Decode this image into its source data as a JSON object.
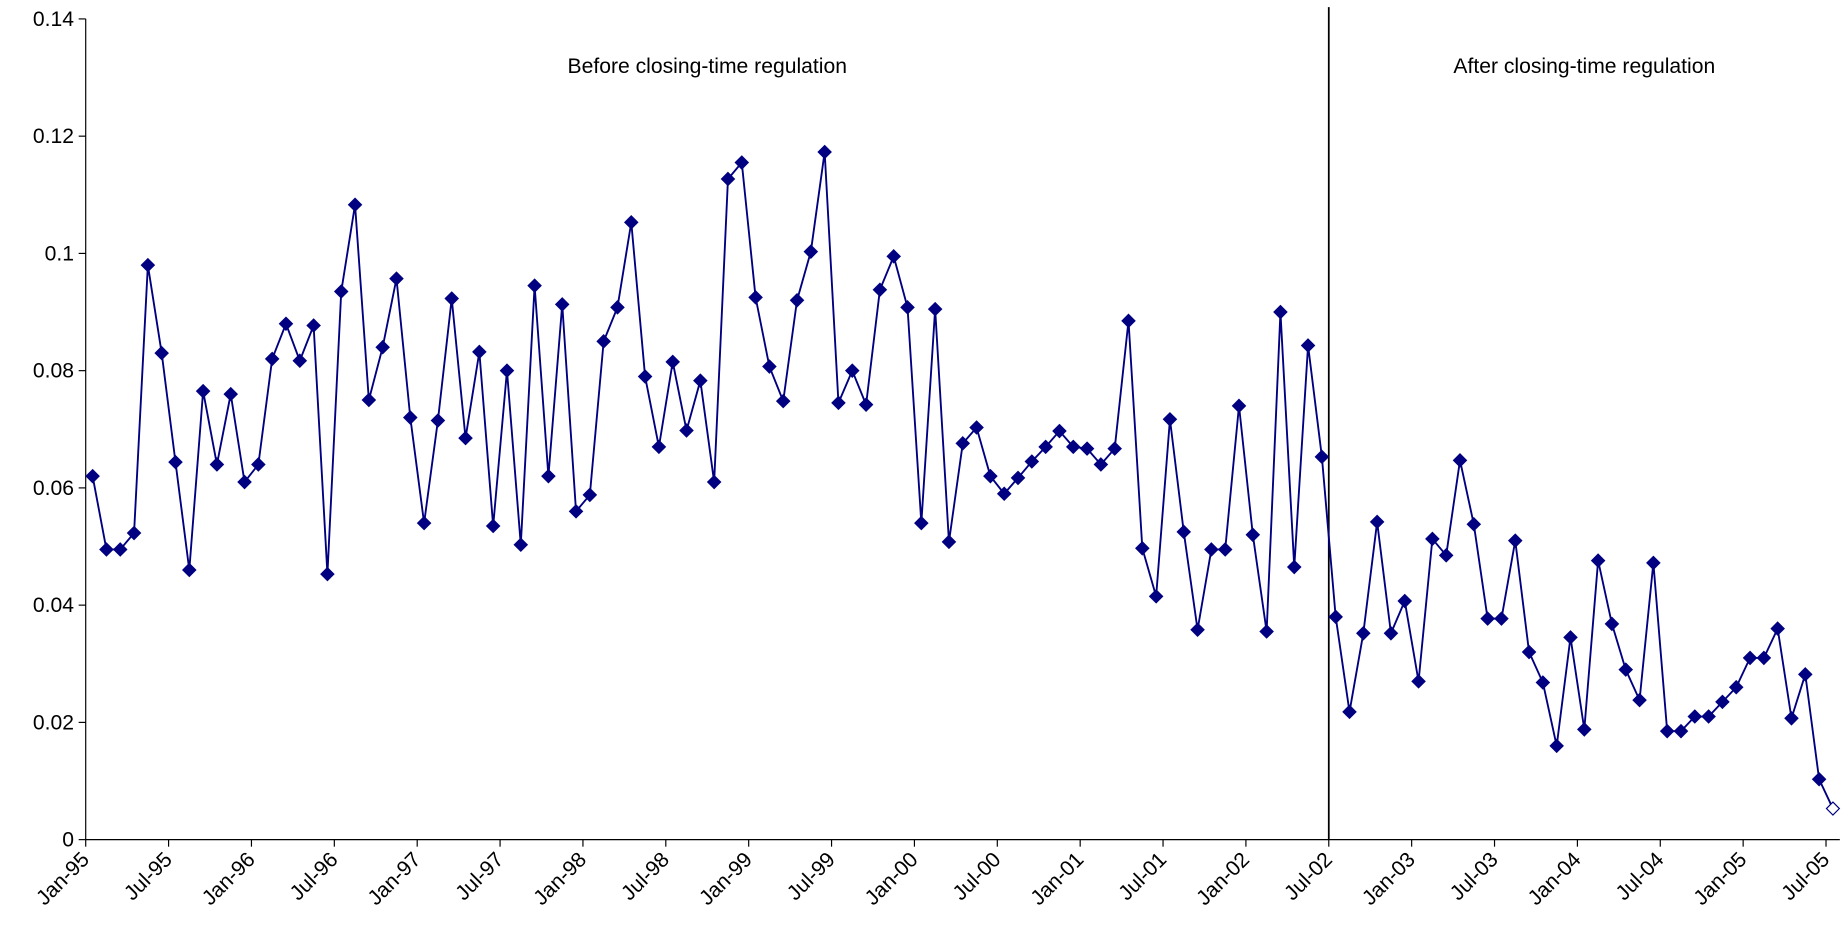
{
  "chart_data": {
    "type": "line",
    "annotations": [
      "Before closing-time regulation",
      "After closing-time regulation"
    ],
    "vline_category": "Jul-02",
    "categories": [
      "Jan-95",
      null,
      null,
      null,
      null,
      null,
      "Jul-95",
      null,
      null,
      null,
      null,
      null,
      "Jan-96",
      null,
      null,
      null,
      null,
      null,
      "Jul-96",
      null,
      null,
      null,
      null,
      null,
      "Jan-97",
      null,
      null,
      null,
      null,
      null,
      "Jul-97",
      null,
      null,
      null,
      null,
      null,
      "Jan-98",
      null,
      null,
      null,
      null,
      null,
      "Jul-98",
      null,
      null,
      null,
      null,
      null,
      "Jan-99",
      null,
      null,
      null,
      null,
      null,
      "Jul-99",
      null,
      null,
      null,
      null,
      null,
      "Jan-00",
      null,
      null,
      null,
      null,
      null,
      "Jul-00",
      null,
      null,
      null,
      null,
      null,
      "Jan-01",
      null,
      null,
      null,
      null,
      null,
      "Jul-01",
      null,
      null,
      null,
      null,
      null,
      "Jan-02",
      null,
      null,
      null,
      null,
      null,
      "Jul-02",
      null,
      null,
      null,
      null,
      null,
      "Jan-03",
      null,
      null,
      null,
      null,
      null,
      "Jul-03",
      null,
      null,
      null,
      null,
      null,
      "Jan-04",
      null,
      null,
      null,
      null,
      null,
      "Jul-04",
      null,
      null,
      null,
      null,
      null,
      "Jan-05",
      null,
      null,
      null,
      null,
      null,
      "Jul-05"
    ],
    "series": [
      {
        "color": "#000080",
        "hollow_last": true,
        "values": [
          0.062,
          0.0495,
          0.0495,
          0.0523,
          0.098,
          0.083,
          0.0644,
          0.046,
          0.0765,
          0.064,
          0.076,
          0.061,
          0.064,
          0.082,
          0.088,
          0.0817,
          0.0877,
          0.0453,
          0.0935,
          0.1083,
          0.075,
          0.084,
          0.0957,
          0.072,
          0.054,
          0.0715,
          0.0923,
          0.0685,
          0.0832,
          0.0535,
          0.08,
          0.0503,
          0.0945,
          0.062,
          0.0913,
          0.056,
          0.0588,
          0.085,
          0.0908,
          0.1053,
          0.079,
          0.067,
          0.0815,
          0.0698,
          0.0783,
          0.061,
          0.1127,
          0.1155,
          0.0925,
          0.0807,
          0.0748,
          0.092,
          0.1003,
          0.1173,
          0.0745,
          0.08,
          0.0742,
          0.0938,
          0.0995,
          0.0908,
          0.054,
          0.0905,
          0.0508,
          0.0676,
          0.0703,
          0.062,
          0.059,
          0.0617,
          0.0645,
          0.067,
          0.0697,
          0.067,
          0.0667,
          0.064,
          0.0667,
          0.0885,
          0.0497,
          0.0415,
          0.0717,
          0.0525,
          0.0358,
          0.0495,
          0.0495,
          0.074,
          0.052,
          0.0355,
          0.09,
          0.0465,
          0.0843,
          0.0653,
          0.038,
          0.0218,
          0.0352,
          0.0542,
          0.0352,
          0.0407,
          0.027,
          0.0513,
          0.0485,
          0.0647,
          0.0538,
          0.0377,
          0.0377,
          0.051,
          0.032,
          0.0268,
          0.016,
          0.0345,
          0.0188,
          0.0476,
          0.0368,
          0.029,
          0.0238,
          0.0472,
          0.0185,
          0.0185,
          0.021,
          0.021,
          0.0235,
          0.026,
          0.031,
          0.031,
          0.036,
          0.0207,
          0.0282,
          0.0103,
          0.0053
        ]
      }
    ],
    "ylim": [
      0,
      0.14
    ],
    "yticks": [
      0,
      0.02,
      0.04,
      0.06,
      0.08,
      0.1,
      0.12,
      0.14
    ]
  }
}
